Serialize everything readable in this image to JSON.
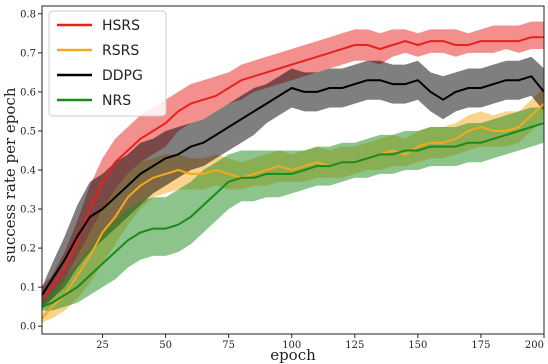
{
  "chart_data": {
    "type": "line",
    "title": "",
    "xlabel": "epoch",
    "ylabel": "success rate per epoch",
    "xlim": [
      1,
      200
    ],
    "ylim": [
      -0.02,
      0.82
    ],
    "xticks": [
      25,
      50,
      75,
      100,
      125,
      150,
      175,
      200
    ],
    "yticks": [
      0.0,
      0.1,
      0.2,
      0.3,
      0.4,
      0.5,
      0.6,
      0.7,
      0.8
    ],
    "xtick_labels": [
      "25",
      "50",
      "75",
      "100",
      "125",
      "150",
      "175",
      "200"
    ],
    "ytick_labels": [
      "0.0",
      "0.1",
      "0.2",
      "0.3",
      "0.4",
      "0.5",
      "0.6",
      "0.7",
      "0.8"
    ],
    "grid": false,
    "legend_position": "top-left",
    "x": [
      1,
      5,
      10,
      15,
      20,
      25,
      30,
      35,
      40,
      45,
      50,
      55,
      60,
      65,
      70,
      75,
      80,
      85,
      90,
      95,
      100,
      105,
      110,
      115,
      120,
      125,
      130,
      135,
      140,
      145,
      150,
      155,
      160,
      165,
      170,
      175,
      180,
      185,
      190,
      195,
      200
    ],
    "series": [
      {
        "name": "HSRS",
        "color": "#e8211d",
        "values": [
          0.07,
          0.1,
          0.15,
          0.22,
          0.3,
          0.37,
          0.42,
          0.45,
          0.48,
          0.5,
          0.52,
          0.55,
          0.57,
          0.58,
          0.59,
          0.61,
          0.63,
          0.64,
          0.65,
          0.66,
          0.67,
          0.68,
          0.69,
          0.7,
          0.71,
          0.72,
          0.72,
          0.71,
          0.72,
          0.73,
          0.72,
          0.73,
          0.73,
          0.72,
          0.72,
          0.73,
          0.73,
          0.73,
          0.73,
          0.74,
          0.74
        ],
        "lower": [
          0.04,
          0.07,
          0.12,
          0.18,
          0.24,
          0.3,
          0.35,
          0.39,
          0.42,
          0.44,
          0.46,
          0.5,
          0.52,
          0.53,
          0.55,
          0.57,
          0.58,
          0.6,
          0.61,
          0.62,
          0.63,
          0.64,
          0.65,
          0.66,
          0.67,
          0.68,
          0.68,
          0.67,
          0.69,
          0.7,
          0.69,
          0.7,
          0.7,
          0.69,
          0.7,
          0.7,
          0.7,
          0.71,
          0.7,
          0.71,
          0.71
        ],
        "upper": [
          0.1,
          0.13,
          0.19,
          0.27,
          0.36,
          0.43,
          0.48,
          0.51,
          0.54,
          0.56,
          0.58,
          0.6,
          0.62,
          0.63,
          0.64,
          0.65,
          0.67,
          0.68,
          0.69,
          0.7,
          0.71,
          0.72,
          0.73,
          0.74,
          0.75,
          0.76,
          0.76,
          0.75,
          0.76,
          0.76,
          0.75,
          0.76,
          0.76,
          0.76,
          0.75,
          0.76,
          0.77,
          0.77,
          0.77,
          0.78,
          0.78
        ]
      },
      {
        "name": "RSRS",
        "color": "#f5a81c",
        "values": [
          0.02,
          0.05,
          0.08,
          0.13,
          0.18,
          0.24,
          0.28,
          0.33,
          0.36,
          0.38,
          0.39,
          0.4,
          0.39,
          0.39,
          0.4,
          0.39,
          0.38,
          0.39,
          0.4,
          0.41,
          0.4,
          0.41,
          0.42,
          0.41,
          0.42,
          0.42,
          0.43,
          0.44,
          0.45,
          0.44,
          0.46,
          0.47,
          0.47,
          0.48,
          0.5,
          0.51,
          0.5,
          0.5,
          0.51,
          0.54,
          0.57
        ],
        "lower": [
          0.01,
          0.02,
          0.04,
          0.07,
          0.11,
          0.16,
          0.21,
          0.26,
          0.3,
          0.33,
          0.34,
          0.35,
          0.35,
          0.35,
          0.36,
          0.35,
          0.35,
          0.36,
          0.36,
          0.37,
          0.37,
          0.37,
          0.38,
          0.38,
          0.38,
          0.39,
          0.4,
          0.4,
          0.41,
          0.41,
          0.42,
          0.43,
          0.43,
          0.44,
          0.45,
          0.46,
          0.46,
          0.46,
          0.47,
          0.5,
          0.53
        ],
        "upper": [
          0.03,
          0.08,
          0.12,
          0.19,
          0.25,
          0.31,
          0.35,
          0.39,
          0.42,
          0.43,
          0.44,
          0.44,
          0.43,
          0.43,
          0.44,
          0.43,
          0.42,
          0.43,
          0.44,
          0.45,
          0.44,
          0.45,
          0.46,
          0.45,
          0.46,
          0.46,
          0.47,
          0.48,
          0.49,
          0.48,
          0.5,
          0.51,
          0.51,
          0.52,
          0.54,
          0.55,
          0.54,
          0.55,
          0.55,
          0.58,
          0.61
        ]
      },
      {
        "name": "DDPG",
        "color": "#000000",
        "values": [
          0.08,
          0.12,
          0.17,
          0.23,
          0.28,
          0.3,
          0.33,
          0.36,
          0.39,
          0.41,
          0.43,
          0.44,
          0.46,
          0.47,
          0.49,
          0.51,
          0.53,
          0.55,
          0.57,
          0.59,
          0.61,
          0.6,
          0.6,
          0.61,
          0.61,
          0.62,
          0.63,
          0.63,
          0.62,
          0.62,
          0.63,
          0.6,
          0.58,
          0.6,
          0.61,
          0.61,
          0.62,
          0.63,
          0.63,
          0.64,
          0.6
        ],
        "lower": [
          0.05,
          0.07,
          0.1,
          0.15,
          0.19,
          0.22,
          0.25,
          0.28,
          0.31,
          0.34,
          0.36,
          0.38,
          0.4,
          0.41,
          0.43,
          0.45,
          0.47,
          0.49,
          0.52,
          0.54,
          0.56,
          0.55,
          0.55,
          0.56,
          0.56,
          0.57,
          0.58,
          0.58,
          0.57,
          0.57,
          0.58,
          0.55,
          0.53,
          0.55,
          0.56,
          0.56,
          0.57,
          0.58,
          0.58,
          0.59,
          0.55
        ],
        "upper": [
          0.1,
          0.16,
          0.23,
          0.31,
          0.37,
          0.39,
          0.42,
          0.44,
          0.47,
          0.48,
          0.5,
          0.51,
          0.52,
          0.53,
          0.55,
          0.57,
          0.59,
          0.61,
          0.62,
          0.64,
          0.66,
          0.65,
          0.65,
          0.66,
          0.66,
          0.67,
          0.68,
          0.68,
          0.67,
          0.67,
          0.68,
          0.65,
          0.64,
          0.65,
          0.66,
          0.66,
          0.67,
          0.68,
          0.68,
          0.69,
          0.66
        ]
      },
      {
        "name": "NRS",
        "color": "#1a8a1a",
        "values": [
          0.05,
          0.06,
          0.08,
          0.1,
          0.13,
          0.16,
          0.19,
          0.22,
          0.24,
          0.25,
          0.25,
          0.26,
          0.28,
          0.31,
          0.34,
          0.37,
          0.38,
          0.38,
          0.39,
          0.39,
          0.39,
          0.4,
          0.41,
          0.41,
          0.42,
          0.42,
          0.43,
          0.44,
          0.44,
          0.45,
          0.45,
          0.46,
          0.46,
          0.46,
          0.47,
          0.47,
          0.48,
          0.49,
          0.5,
          0.51,
          0.52
        ],
        "lower": [
          0.04,
          0.04,
          0.05,
          0.06,
          0.08,
          0.1,
          0.12,
          0.15,
          0.17,
          0.18,
          0.18,
          0.19,
          0.21,
          0.24,
          0.27,
          0.3,
          0.32,
          0.32,
          0.33,
          0.33,
          0.34,
          0.35,
          0.36,
          0.36,
          0.37,
          0.38,
          0.38,
          0.39,
          0.39,
          0.4,
          0.4,
          0.41,
          0.41,
          0.41,
          0.42,
          0.42,
          0.43,
          0.44,
          0.45,
          0.46,
          0.47
        ],
        "upper": [
          0.06,
          0.09,
          0.12,
          0.16,
          0.2,
          0.24,
          0.27,
          0.3,
          0.32,
          0.33,
          0.33,
          0.35,
          0.37,
          0.4,
          0.42,
          0.44,
          0.45,
          0.45,
          0.45,
          0.45,
          0.45,
          0.45,
          0.46,
          0.46,
          0.47,
          0.47,
          0.48,
          0.49,
          0.49,
          0.5,
          0.5,
          0.51,
          0.51,
          0.51,
          0.52,
          0.52,
          0.53,
          0.54,
          0.55,
          0.56,
          0.56
        ]
      }
    ]
  }
}
